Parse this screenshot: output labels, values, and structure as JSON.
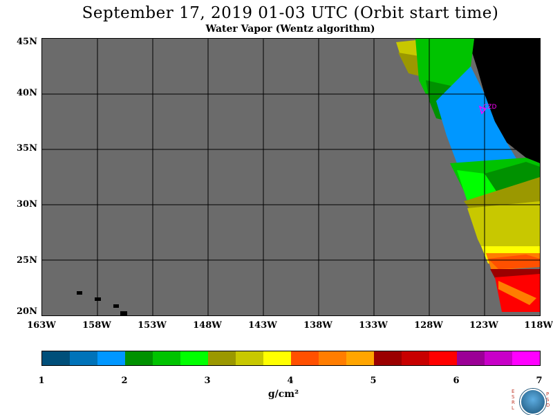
{
  "title": "September 17, 2019  01-03 UTC  (Orbit start time)",
  "subtitle": "Water Vapor (Wentz algorithm)",
  "lat_labels": [
    "45N",
    "40N",
    "35N",
    "30N",
    "25N",
    "20N"
  ],
  "lon_labels": [
    "163W",
    "158W",
    "153W",
    "148W",
    "143W",
    "138W",
    "133W",
    "128W",
    "123W",
    "118W"
  ],
  "station_label": "CZD",
  "colorbar": {
    "colors": [
      "#004f7a",
      "#0073b9",
      "#0097ff",
      "#009100",
      "#00c300",
      "#00ff00",
      "#9b9800",
      "#c8c800",
      "#ffff00",
      "#ff5000",
      "#ff7d00",
      "#ffa500",
      "#9b0000",
      "#c80000",
      "#ff0000",
      "#9b0096",
      "#c800c8",
      "#ff00ff"
    ],
    "ticks": [
      "1",
      "2",
      "3",
      "4",
      "5",
      "6",
      "7"
    ],
    "units": "g/cm²"
  },
  "logo": {
    "left_letters": "E S R L",
    "right_letters": "P S D",
    "center": "NOAA"
  },
  "colors": {
    "ocean_nodata": "#6b6b6b",
    "land": "#000000",
    "station": "#ff00ff"
  }
}
